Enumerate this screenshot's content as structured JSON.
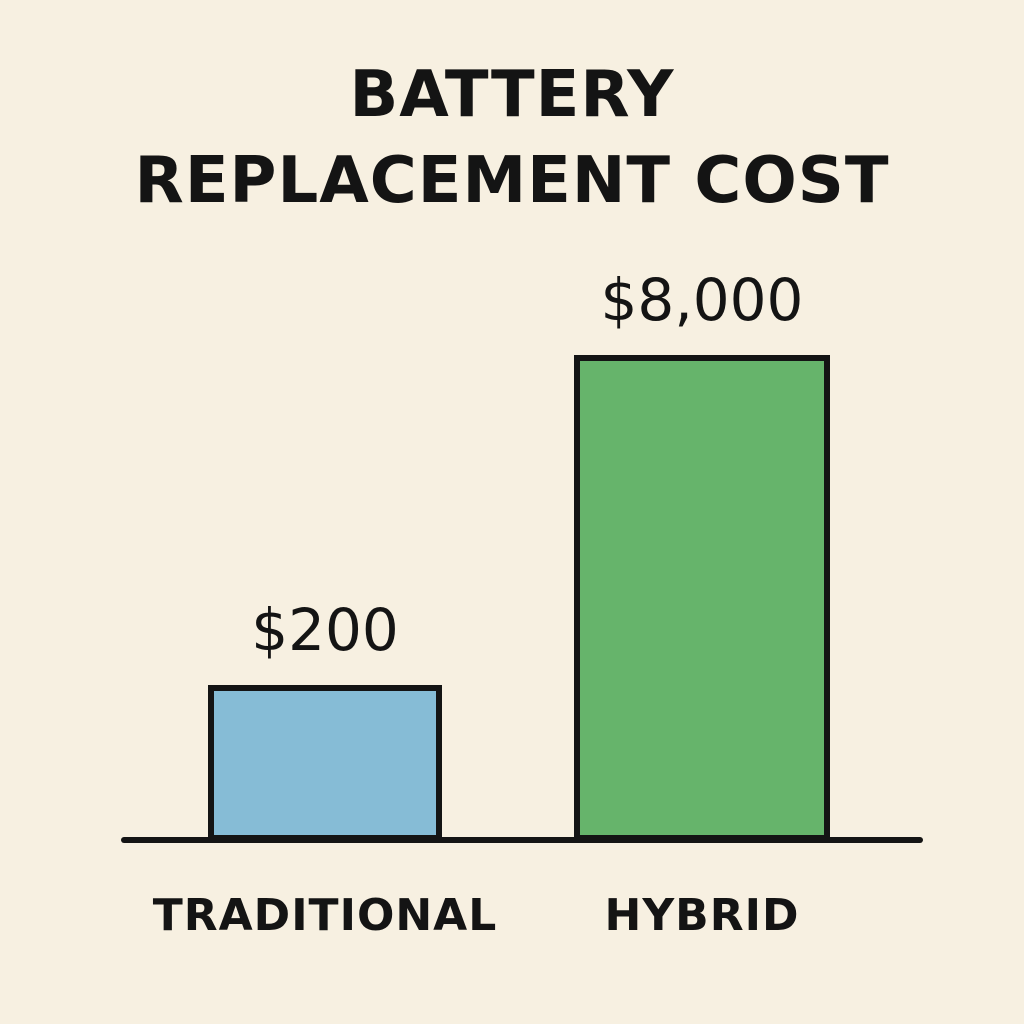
{
  "chart_data": {
    "type": "bar",
    "title_lines": [
      "BATTERY",
      "REPLACEMENT COST"
    ],
    "categories": [
      "TRADITIONAL",
      "HYBRID"
    ],
    "values": [
      200,
      8000
    ],
    "value_labels": [
      "$200",
      "$8,000"
    ],
    "colors": [
      "#86bcd6",
      "#66b46b"
    ],
    "xlabel": "",
    "ylabel": "",
    "grid": false,
    "legend": "none"
  }
}
